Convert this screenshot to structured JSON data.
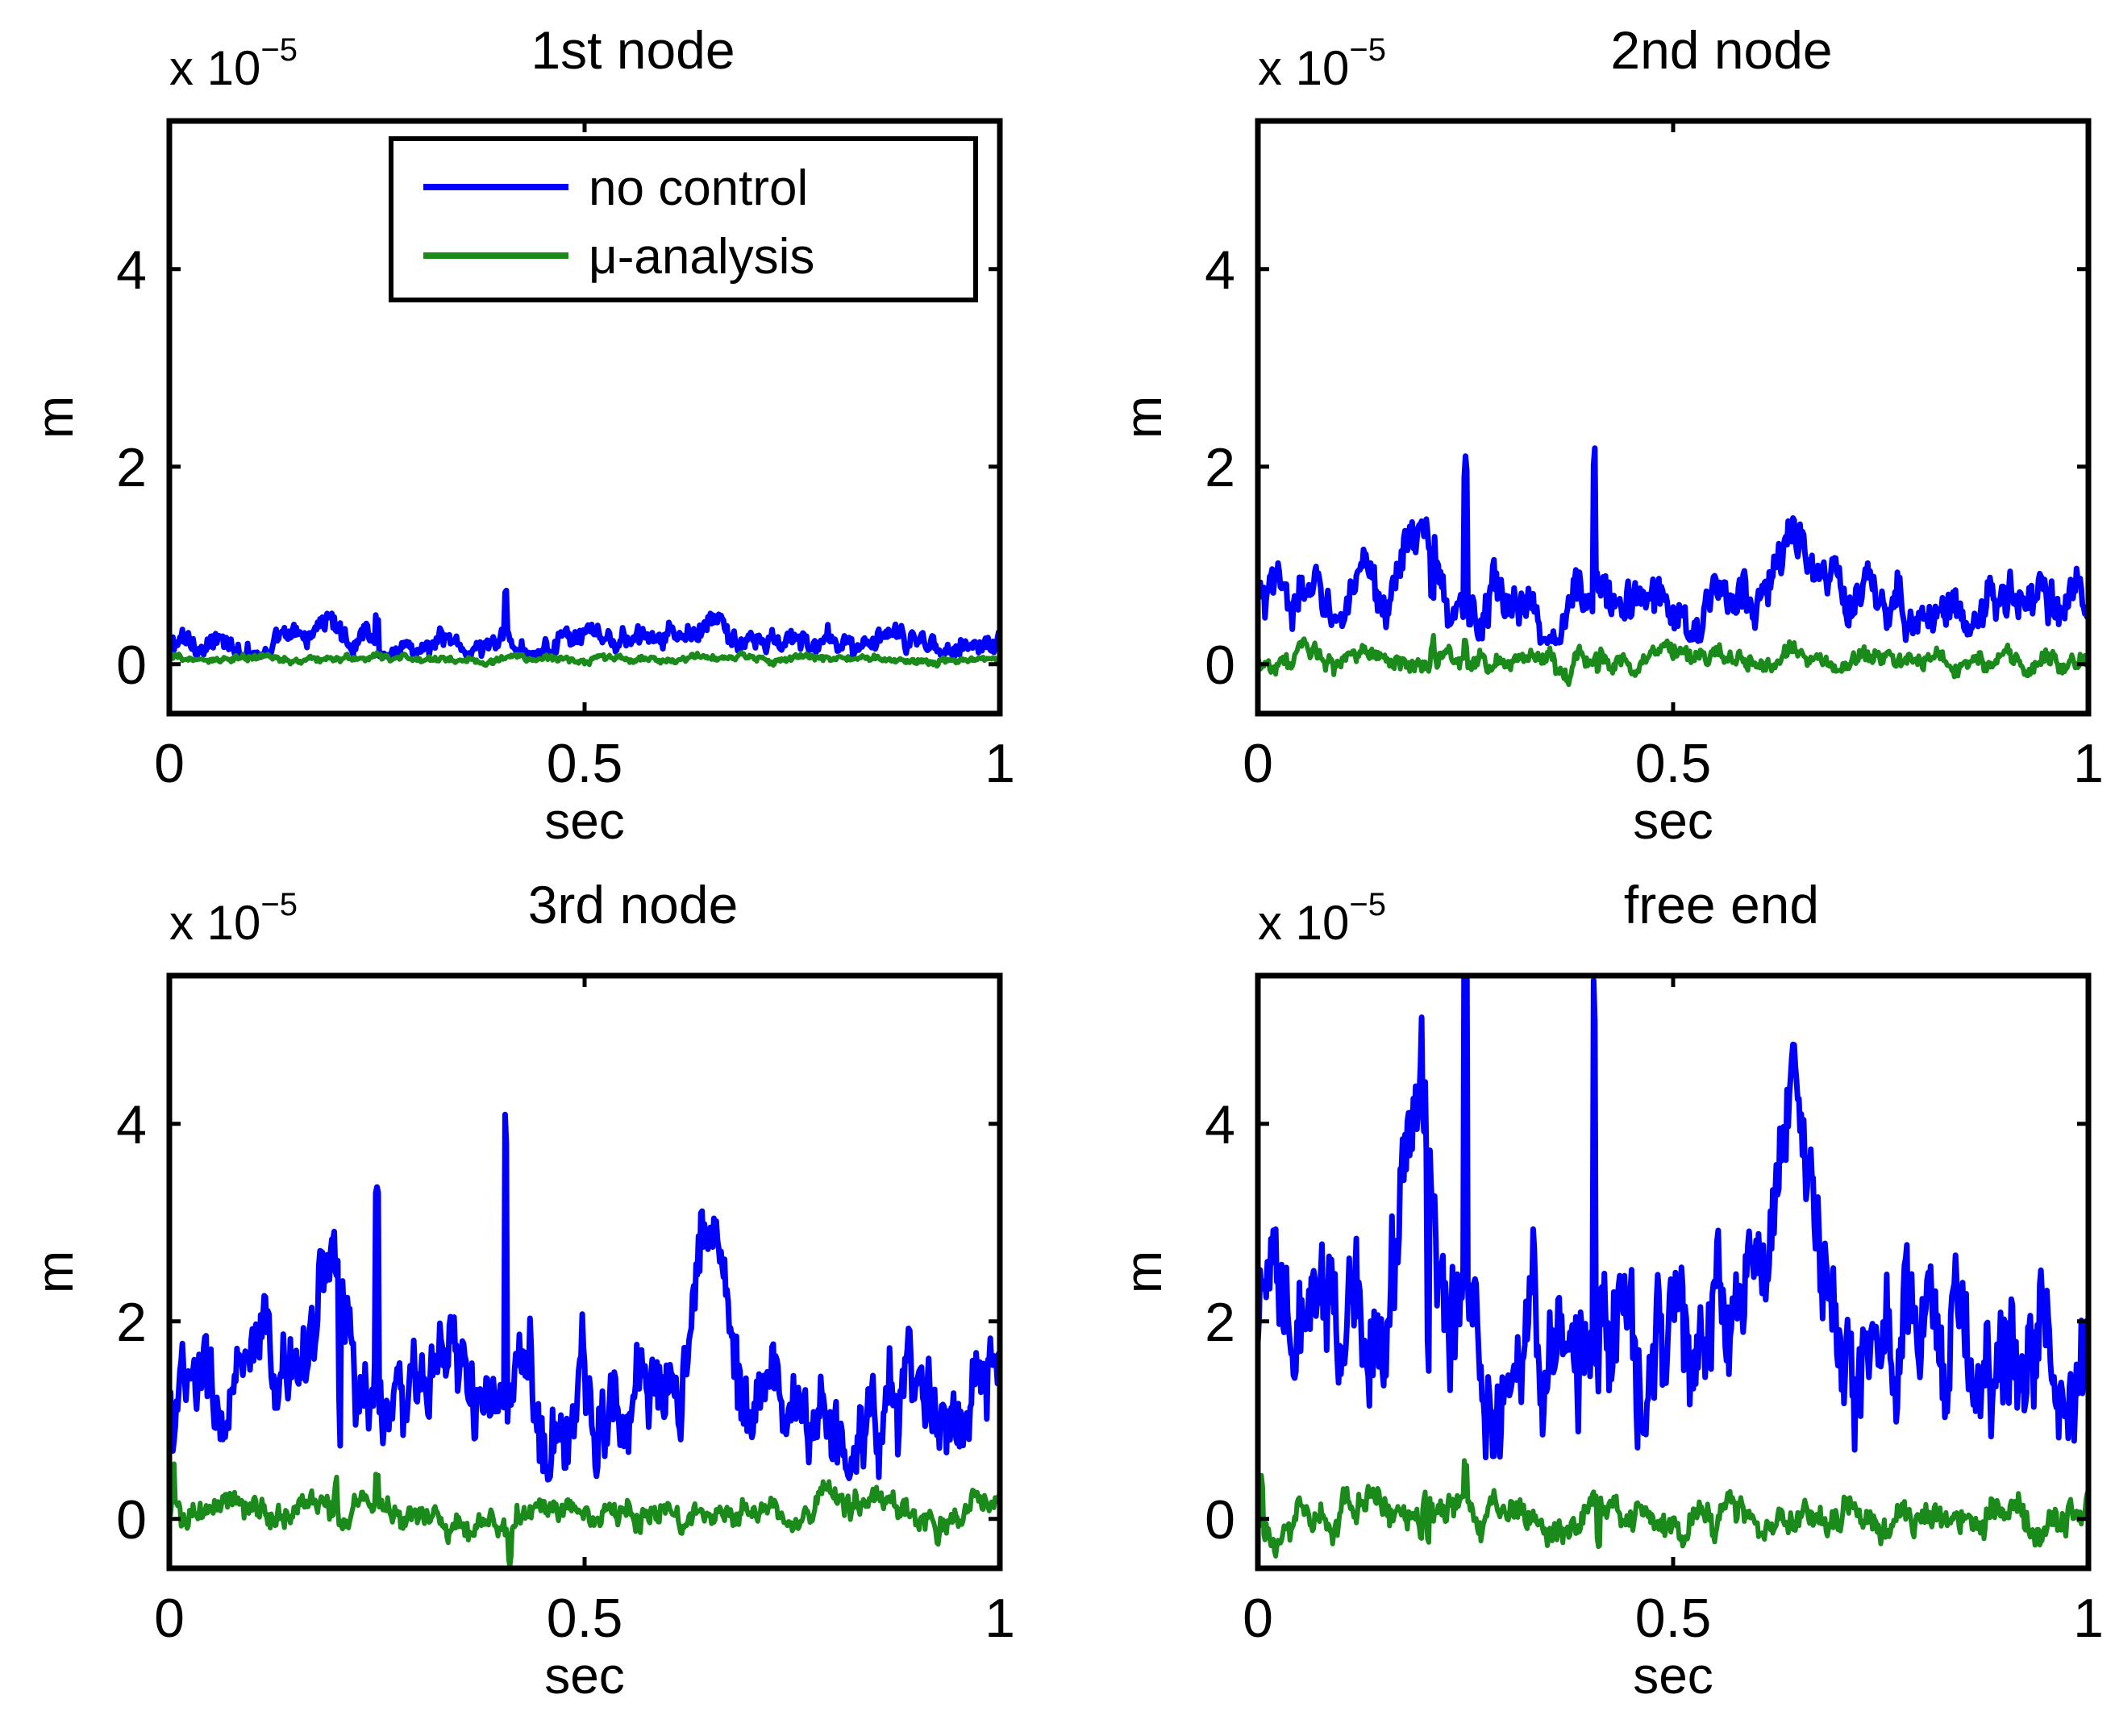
{
  "chart_data": [
    {
      "type": "line",
      "title": "1st node",
      "xlabel": "sec",
      "ylabel": "m",
      "exponent_label": {
        "base": "x 10",
        "power": "−5"
      },
      "xlim": [
        0,
        1
      ],
      "ylim": [
        -0.5,
        5.5
      ],
      "xticks": [
        "0",
        "0.5",
        "1"
      ],
      "yticks": [
        "0",
        "2",
        "4"
      ],
      "legend": {
        "position": "top-right",
        "entries": [
          "no control",
          "μ-analysis"
        ]
      },
      "series": [
        {
          "name": "no control",
          "color": "#0000ff",
          "base": 0.2,
          "noise": 0.07,
          "fast": 0.06,
          "peaks": [
            {
              "t": 0.19,
              "a": 0.25,
              "w": 0.02
            },
            {
              "t": 0.65,
              "a": 0.18,
              "w": 0.025
            }
          ],
          "spikes": [
            {
              "t": 0.25,
              "a": 0.25
            },
            {
              "t": 0.405,
              "a": 0.35
            }
          ]
        },
        {
          "name": "μ-analysis",
          "color": "#1a8a1a",
          "base": 0.05,
          "noise": 0.02,
          "fast": 0.02,
          "peaks": [],
          "spikes": []
        }
      ]
    },
    {
      "type": "line",
      "title": "2nd node",
      "xlabel": "sec",
      "ylabel": "m",
      "exponent_label": {
        "base": "x 10",
        "power": "−5"
      },
      "xlim": [
        0,
        1
      ],
      "ylim": [
        -0.5,
        5.5
      ],
      "xticks": [
        "0",
        "0.5",
        "1"
      ],
      "yticks": [
        "0",
        "2",
        "4"
      ],
      "series": [
        {
          "name": "no control",
          "color": "#0000ff",
          "base": 0.6,
          "noise": 0.15,
          "fast": 0.12,
          "peaks": [
            {
              "t": 0.19,
              "a": 0.75,
              "w": 0.025
            },
            {
              "t": 0.65,
              "a": 0.7,
              "w": 0.03
            }
          ],
          "spikes": [
            {
              "t": 0.25,
              "a": 1.3
            },
            {
              "t": 0.405,
              "a": 1.35
            },
            {
              "t": 0.21,
              "a": -0.5
            }
          ]
        },
        {
          "name": "μ-analysis",
          "color": "#1a8a1a",
          "base": 0.05,
          "noise": 0.06,
          "fast": 0.05,
          "peaks": [],
          "spikes": [
            {
              "t": 0.21,
              "a": 0.2
            },
            {
              "t": 0.25,
              "a": 0.2
            },
            {
              "t": 0.41,
              "a": -0.15
            }
          ]
        }
      ]
    },
    {
      "type": "line",
      "title": "3rd node",
      "xlabel": "sec",
      "ylabel": "m",
      "exponent_label": {
        "base": "x 10",
        "power": "−5"
      },
      "xlim": [
        0,
        1
      ],
      "ylim": [
        -0.5,
        5.5
      ],
      "xticks": [
        "0",
        "0.5",
        "1"
      ],
      "yticks": [
        "0",
        "2",
        "4"
      ],
      "series": [
        {
          "name": "no control",
          "color": "#0000ff",
          "base": 1.1,
          "noise": 0.3,
          "fast": 0.22,
          "peaks": [
            {
              "t": 0.19,
              "a": 1.6,
              "w": 0.03
            },
            {
              "t": 0.65,
              "a": 1.4,
              "w": 0.03
            }
          ],
          "spikes": [
            {
              "t": 0.25,
              "a": 2.4
            },
            {
              "t": 0.405,
              "a": 2.5
            },
            {
              "t": 0.205,
              "a": -1.6
            }
          ]
        },
        {
          "name": "μ-analysis",
          "color": "#1a8a1a",
          "base": 0.07,
          "noise": 0.08,
          "fast": 0.07,
          "peaks": [],
          "spikes": [
            {
              "t": 0.2,
              "a": 0.3
            },
            {
              "t": 0.25,
              "a": 0.3
            },
            {
              "t": 0.41,
              "a": -0.3
            },
            {
              "t": 0.005,
              "a": 0.35
            }
          ]
        }
      ]
    },
    {
      "type": "line",
      "title": "free end",
      "xlabel": "sec",
      "ylabel": "m",
      "exponent_label": {
        "base": "x 10",
        "power": "−5"
      },
      "xlim": [
        0,
        1
      ],
      "ylim": [
        -0.5,
        5.5
      ],
      "xticks": [
        "0",
        "0.5",
        "1"
      ],
      "yticks": [
        "0",
        "2",
        "4"
      ],
      "series": [
        {
          "name": "no control",
          "color": "#0000ff",
          "base": 1.7,
          "noise": 0.4,
          "fast": 0.35,
          "peaks": [
            {
              "t": 0.19,
              "a": 2.6,
              "w": 0.035
            },
            {
              "t": 0.65,
              "a": 2.2,
              "w": 0.035
            }
          ],
          "spikes": [
            {
              "t": 0.25,
              "a": 3.8
            },
            {
              "t": 0.405,
              "a": 3.9
            },
            {
              "t": 0.205,
              "a": -2.2
            }
          ]
        },
        {
          "name": "μ-analysis",
          "color": "#1a8a1a",
          "base": 0.05,
          "noise": 0.1,
          "fast": 0.08,
          "peaks": [],
          "spikes": [
            {
              "t": 0.2,
              "a": 0.35
            },
            {
              "t": 0.25,
              "a": 0.35
            },
            {
              "t": 0.205,
              "a": -0.35
            },
            {
              "t": 0.41,
              "a": -0.35
            },
            {
              "t": 0.005,
              "a": 0.45
            }
          ]
        }
      ]
    }
  ]
}
